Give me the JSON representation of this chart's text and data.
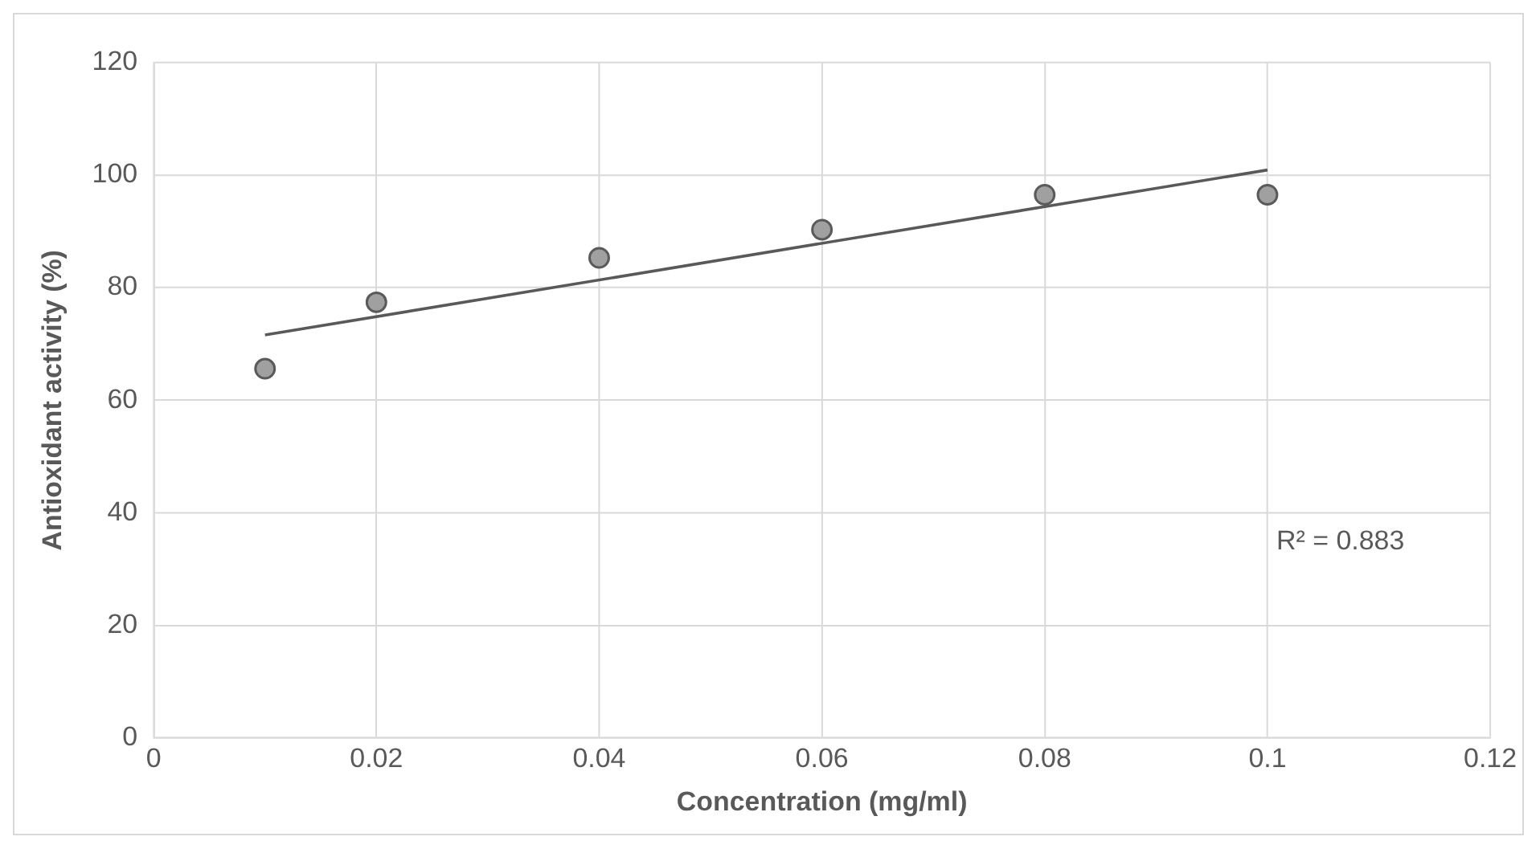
{
  "chart_data": {
    "type": "scatter",
    "xlabel": "Concentration (mg/ml)",
    "ylabel": "Antioxidant activity (%)",
    "series": [
      {
        "color": "#a0a0a0",
        "x": [
          0.01,
          0.02,
          0.04,
          0.06,
          0.08,
          0.1
        ],
        "values": [
          65.6,
          77.4,
          85.3,
          90.3,
          96.5,
          96.5
        ],
        "marker": "circle"
      },
      {
        "type": "line",
        "color": "#595959",
        "x": [
          0.01,
          0.1
        ],
        "values": [
          71.6,
          100.9
        ],
        "marker": "none"
      }
    ],
    "xlim": [
      0,
      0.12
    ],
    "xticks": [
      0,
      0.02,
      0.04,
      0.06,
      0.08,
      0.1,
      0.12
    ],
    "ylim": [
      0,
      120
    ],
    "yticks": [
      0,
      20,
      40,
      60,
      80,
      100,
      120
    ],
    "grid": true,
    "legend": false,
    "annotations": [
      "R² = 0.883"
    ]
  }
}
